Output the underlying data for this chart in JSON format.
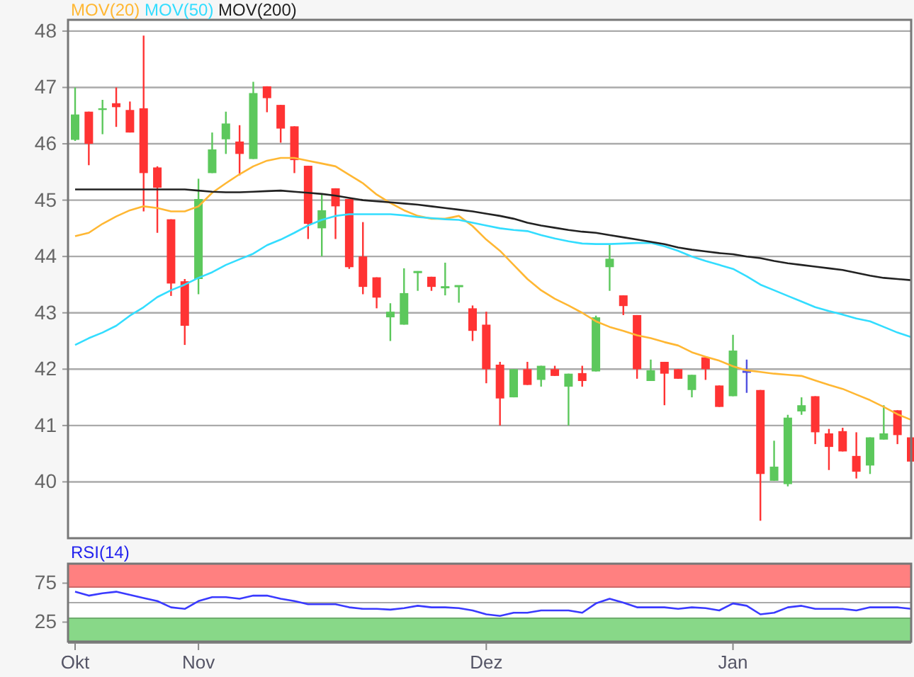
{
  "chart_data": [
    {
      "type": "candlestick",
      "categories": [
        null,
        null,
        null,
        null,
        null,
        null,
        null,
        null,
        null,
        null,
        null,
        null,
        null,
        null,
        null,
        null,
        null,
        null,
        null,
        null,
        null,
        null,
        null,
        null,
        null,
        null,
        null,
        null,
        null,
        null,
        null,
        null,
        null,
        null,
        null,
        null,
        null,
        null,
        null,
        null,
        null,
        null,
        null,
        null,
        null,
        null,
        null,
        null,
        null,
        null,
        null,
        null,
        null,
        null,
        null,
        null,
        null,
        null,
        null,
        null,
        null,
        null
      ],
      "ylim": [
        39.0,
        48.2
      ],
      "yticks": [
        40,
        41,
        42,
        43,
        44,
        45,
        46,
        47,
        48
      ],
      "grid": "y",
      "legend": "top left",
      "tick_labels": "y",
      "series": [
        {
          "ohlc": [
            [
              46.07,
              47.0,
              46.05,
              46.52
            ],
            [
              46.57,
              46.57,
              45.62,
              46.0
            ],
            [
              46.6,
              46.78,
              46.17,
              46.63
            ],
            [
              46.72,
              47.0,
              46.3,
              46.65
            ],
            [
              46.6,
              46.75,
              46.2,
              46.2
            ],
            [
              46.63,
              47.92,
              44.8,
              45.48
            ],
            [
              45.58,
              45.6,
              44.42,
              45.22
            ],
            [
              44.66,
              44.66,
              43.3,
              43.52
            ],
            [
              43.56,
              43.6,
              42.43,
              42.77
            ],
            [
              43.6,
              45.38,
              43.33,
              45.02
            ],
            [
              45.48,
              46.2,
              45.48,
              45.9
            ],
            [
              46.08,
              46.57,
              45.82,
              46.36
            ],
            [
              46.04,
              46.33,
              45.44,
              45.82
            ],
            [
              45.73,
              47.1,
              45.73,
              46.9
            ],
            [
              47.02,
              47.02,
              46.56,
              46.81
            ],
            [
              46.69,
              46.69,
              46.02,
              46.27
            ],
            [
              46.31,
              46.31,
              45.48,
              45.71
            ],
            [
              45.61,
              45.61,
              44.31,
              44.58
            ],
            [
              44.5,
              45.1,
              44.0,
              44.82
            ],
            [
              45.21,
              45.21,
              44.31,
              44.89
            ],
            [
              45.02,
              45.02,
              43.78,
              43.81
            ],
            [
              44.0,
              44.61,
              43.33,
              43.46
            ],
            [
              43.63,
              43.63,
              43.08,
              43.27
            ],
            [
              42.92,
              43.17,
              42.5,
              43.02
            ],
            [
              42.79,
              43.79,
              42.79,
              43.35
            ],
            [
              43.71,
              43.74,
              43.39,
              43.73
            ],
            [
              43.64,
              43.64,
              43.39,
              43.46
            ],
            [
              43.44,
              43.89,
              43.31,
              43.46
            ],
            [
              43.46,
              43.48,
              43.18,
              43.48
            ],
            [
              43.08,
              43.13,
              42.5,
              42.68
            ],
            [
              42.79,
              43.02,
              41.75,
              42.0
            ],
            [
              42.08,
              42.13,
              41.0,
              41.48
            ],
            [
              41.5,
              42.0,
              41.5,
              42.0
            ],
            [
              42.0,
              42.13,
              41.72,
              41.72
            ],
            [
              41.81,
              42.06,
              41.69,
              42.06
            ],
            [
              42.0,
              42.06,
              41.88,
              41.88
            ],
            [
              41.69,
              41.92,
              41.0,
              41.92
            ],
            [
              41.93,
              42.06,
              41.69,
              41.79
            ],
            [
              41.96,
              42.95,
              41.96,
              42.92
            ],
            [
              43.81,
              44.22,
              43.39,
              43.96
            ],
            [
              43.31,
              43.31,
              42.96,
              43.12
            ],
            [
              42.96,
              42.96,
              41.83,
              42.0
            ],
            [
              41.79,
              42.17,
              41.79,
              41.98
            ],
            [
              42.13,
              42.13,
              41.36,
              41.92
            ],
            [
              42.0,
              42.0,
              41.83,
              41.83
            ],
            [
              41.63,
              41.9,
              41.5,
              41.9
            ],
            [
              42.21,
              42.21,
              41.81,
              42.0
            ],
            [
              41.71,
              41.71,
              41.33,
              41.33
            ],
            [
              41.52,
              42.61,
              41.52,
              42.33
            ],
            [
              41.96,
              42.17,
              41.58,
              41.96
            ],
            [
              41.63,
              41.63,
              39.31,
              40.14
            ],
            [
              40.02,
              40.73,
              40.02,
              40.27
            ],
            [
              39.96,
              41.19,
              39.92,
              41.14
            ],
            [
              41.25,
              41.5,
              41.19,
              41.36
            ],
            [
              41.52,
              41.52,
              40.67,
              40.88
            ],
            [
              40.86,
              40.94,
              40.21,
              40.62
            ],
            [
              40.9,
              40.96,
              40.54,
              40.54
            ],
            [
              40.46,
              40.88,
              40.06,
              40.18
            ],
            [
              40.29,
              40.79,
              40.14,
              40.79
            ],
            [
              40.75,
              41.36,
              40.75,
              40.86
            ],
            [
              41.27,
              41.27,
              40.67,
              40.83
            ],
            [
              40.79,
              40.79,
              40.36,
              40.36
            ]
          ],
          "colors": [
            "#5cc85c",
            "#ff3333",
            "#5cc85c",
            "#ff3333",
            "#ff3333",
            "#ff3333",
            "#ff3333",
            "#ff3333",
            "#ff3333",
            "#5cc85c",
            "#5cc85c",
            "#5cc85c",
            "#ff3333",
            "#5cc85c",
            "#ff3333",
            "#ff3333",
            "#ff3333",
            "#ff3333",
            "#5cc85c",
            "#ff3333",
            "#ff3333",
            "#ff3333",
            "#ff3333",
            "#5cc85c",
            "#5cc85c",
            "#5cc85c",
            "#ff3333",
            "#5cc85c",
            "#5cc85c",
            "#ff3333",
            "#ff3333",
            "#ff3333",
            "#5cc85c",
            "#ff3333",
            "#5cc85c",
            "#ff3333",
            "#5cc85c",
            "#ff3333",
            "#5cc85c",
            "#5cc85c",
            "#ff3333",
            "#ff3333",
            "#5cc85c",
            "#ff3333",
            "#ff3333",
            "#5cc85c",
            "#ff3333",
            "#ff3333",
            "#5cc85c",
            "#5050e0",
            "#ff3333",
            "#5cc85c",
            "#5cc85c",
            "#5cc85c",
            "#ff3333",
            "#ff3333",
            "#ff3333",
            "#ff3333",
            "#5cc85c",
            "#5cc85c",
            "#ff3333",
            "#ff3333"
          ]
        },
        {
          "type": "line",
          "name": "MOV(20)",
          "color": "#ffb733",
          "values": [
            44.36,
            44.42,
            44.58,
            44.71,
            44.82,
            44.89,
            44.86,
            44.8,
            44.8,
            44.89,
            45.13,
            45.3,
            45.46,
            45.6,
            45.7,
            45.75,
            45.75,
            45.7,
            45.65,
            45.6,
            45.45,
            45.3,
            45.1,
            44.95,
            44.82,
            44.72,
            44.67,
            44.67,
            44.72,
            44.54,
            44.3,
            44.1,
            43.85,
            43.6,
            43.4,
            43.25,
            43.13,
            43.0,
            42.85,
            42.75,
            42.68,
            42.6,
            42.55,
            42.48,
            42.42,
            42.3,
            42.22,
            42.15,
            42.05,
            41.98,
            41.95,
            41.92,
            41.9,
            41.88,
            41.8,
            41.72,
            41.65,
            41.55,
            41.45,
            41.33,
            41.2,
            41.1
          ]
        },
        {
          "type": "line",
          "name": "MOV(50)",
          "color": "#33ddff",
          "values": [
            42.43,
            42.55,
            42.65,
            42.77,
            42.95,
            43.1,
            43.28,
            43.4,
            43.5,
            43.62,
            43.72,
            43.85,
            43.95,
            44.05,
            44.2,
            44.3,
            44.42,
            44.55,
            44.65,
            44.72,
            44.75,
            44.75,
            44.75,
            44.75,
            44.73,
            44.7,
            44.68,
            44.66,
            44.65,
            44.6,
            44.55,
            44.5,
            44.47,
            44.45,
            44.38,
            44.32,
            44.27,
            44.23,
            44.22,
            44.22,
            44.23,
            44.24,
            44.24,
            44.18,
            44.1,
            44.0,
            43.92,
            43.85,
            43.78,
            43.65,
            43.5,
            43.4,
            43.3,
            43.2,
            43.1,
            43.03,
            42.97,
            42.9,
            42.85,
            42.75,
            42.65,
            42.57
          ]
        },
        {
          "type": "line",
          "name": "MOV(200)",
          "color": "#222222",
          "values": [
            45.19,
            45.19,
            45.19,
            45.19,
            45.19,
            45.19,
            45.19,
            45.19,
            45.19,
            45.17,
            45.15,
            45.14,
            45.14,
            45.15,
            45.16,
            45.17,
            45.15,
            45.13,
            45.11,
            45.08,
            45.04,
            45.0,
            44.98,
            44.96,
            44.94,
            44.92,
            44.89,
            44.86,
            44.83,
            44.8,
            44.76,
            44.72,
            44.67,
            44.6,
            44.55,
            44.51,
            44.47,
            44.44,
            44.42,
            44.38,
            44.34,
            44.3,
            44.26,
            44.22,
            44.16,
            44.12,
            44.09,
            44.06,
            44.04,
            44.0,
            43.97,
            43.92,
            43.88,
            43.85,
            43.82,
            43.79,
            43.76,
            43.71,
            43.66,
            43.62,
            43.6,
            43.58
          ]
        }
      ]
    },
    {
      "type": "line",
      "title": "RSI(14)",
      "categories": [
        "Okt",
        null,
        null,
        null,
        null,
        null,
        null,
        null,
        null,
        "Nov",
        null,
        null,
        null,
        null,
        null,
        null,
        null,
        null,
        null,
        null,
        null,
        null,
        null,
        null,
        null,
        null,
        null,
        null,
        null,
        null,
        "Dez",
        null,
        null,
        null,
        null,
        null,
        null,
        null,
        null,
        null,
        null,
        null,
        null,
        null,
        null,
        null,
        null,
        null,
        "Jan",
        null,
        null,
        null,
        null,
        null,
        null,
        null,
        null,
        null,
        null,
        null,
        null,
        null
      ],
      "ylim": [
        0,
        100
      ],
      "yticks": [
        25,
        75
      ],
      "bands": [
        {
          "axis": "y",
          "from": 70,
          "to": 100,
          "color": "#ff8080"
        },
        {
          "axis": "y",
          "from": 0,
          "to": 30,
          "color": "#88d888"
        }
      ],
      "ref_lines": [
        {
          "axis": "y",
          "value": 50,
          "color": "#aaaaaa"
        }
      ],
      "series": [
        {
          "color": "#3a3aff",
          "values": [
            64,
            59,
            62,
            64,
            60,
            56,
            52,
            44,
            42,
            52,
            57,
            57,
            55,
            59,
            59,
            55,
            52,
            48,
            48,
            48,
            44,
            42,
            42,
            41,
            43,
            46,
            44,
            44,
            43,
            40,
            35,
            33,
            37,
            37,
            40,
            40,
            40,
            37,
            49,
            55,
            50,
            44,
            44,
            44,
            42,
            44,
            43,
            40,
            49,
            46,
            35,
            37,
            44,
            46,
            42,
            42,
            42,
            40,
            44,
            44,
            44,
            42
          ]
        }
      ]
    }
  ]
}
